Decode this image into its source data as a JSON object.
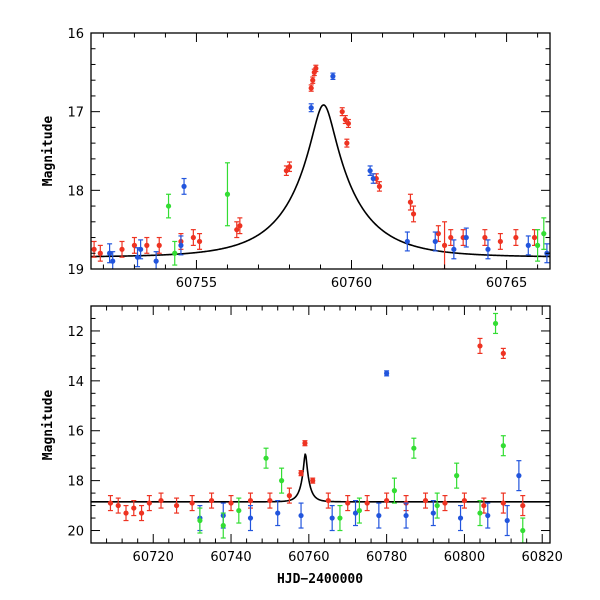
{
  "chart_data": [
    {
      "type": "scatter",
      "title": "",
      "xlabel": "",
      "ylabel": "Magnitude",
      "xlim": [
        60751.6,
        60766.4
      ],
      "ylim": [
        19.0,
        16.0
      ],
      "y_inverted": true,
      "x_major_ticks": [
        60755,
        60760,
        60765
      ],
      "y_major_ticks": [
        16,
        17,
        18,
        19
      ],
      "grid": false,
      "legend": "none",
      "model_curve": {
        "type": "single-lens microlensing fit",
        "t0": 60759.1,
        "tE": 2.0,
        "u0": 0.17,
        "baseline_mag": 18.85
      },
      "series": [
        {
          "color": "#ee3322",
          "values": [
            {
              "x": 60751.7,
              "y": 18.75,
              "e": 0.1
            },
            {
              "x": 60751.9,
              "y": 18.8,
              "e": 0.1
            },
            {
              "x": 60752.6,
              "y": 18.75,
              "e": 0.1
            },
            {
              "x": 60753.0,
              "y": 18.7,
              "e": 0.1
            },
            {
              "x": 60753.4,
              "y": 18.7,
              "e": 0.1
            },
            {
              "x": 60753.8,
              "y": 18.7,
              "e": 0.1
            },
            {
              "x": 60754.5,
              "y": 18.65,
              "e": 0.1
            },
            {
              "x": 60754.9,
              "y": 18.6,
              "e": 0.1
            },
            {
              "x": 60755.1,
              "y": 18.65,
              "e": 0.1
            },
            {
              "x": 60756.3,
              "y": 18.5,
              "e": 0.1
            },
            {
              "x": 60756.4,
              "y": 18.45,
              "e": 0.1
            },
            {
              "x": 60757.9,
              "y": 17.75,
              "e": 0.06
            },
            {
              "x": 60758.0,
              "y": 17.7,
              "e": 0.06
            },
            {
              "x": 60758.7,
              "y": 16.7,
              "e": 0.04
            },
            {
              "x": 60758.75,
              "y": 16.6,
              "e": 0.04
            },
            {
              "x": 60758.8,
              "y": 16.5,
              "e": 0.04
            },
            {
              "x": 60758.85,
              "y": 16.45,
              "e": 0.04
            },
            {
              "x": 60759.7,
              "y": 17.0,
              "e": 0.05
            },
            {
              "x": 60759.8,
              "y": 17.1,
              "e": 0.05
            },
            {
              "x": 60759.9,
              "y": 17.15,
              "e": 0.05
            },
            {
              "x": 60759.85,
              "y": 17.4,
              "e": 0.05
            },
            {
              "x": 60760.8,
              "y": 17.85,
              "e": 0.06
            },
            {
              "x": 60760.9,
              "y": 17.95,
              "e": 0.06
            },
            {
              "x": 60761.9,
              "y": 18.15,
              "e": 0.1
            },
            {
              "x": 60762.0,
              "y": 18.3,
              "e": 0.1
            },
            {
              "x": 60762.8,
              "y": 18.55,
              "e": 0.1
            },
            {
              "x": 60763.0,
              "y": 18.7,
              "e": 0.3
            },
            {
              "x": 60763.2,
              "y": 18.6,
              "e": 0.1
            },
            {
              "x": 60763.6,
              "y": 18.6,
              "e": 0.1
            },
            {
              "x": 60764.3,
              "y": 18.6,
              "e": 0.1
            },
            {
              "x": 60764.8,
              "y": 18.65,
              "e": 0.1
            },
            {
              "x": 60765.3,
              "y": 18.6,
              "e": 0.1
            },
            {
              "x": 60765.9,
              "y": 18.6,
              "e": 0.1
            }
          ]
        },
        {
          "color": "#2255dd",
          "values": [
            {
              "x": 60752.2,
              "y": 18.8,
              "e": 0.12
            },
            {
              "x": 60752.3,
              "y": 18.9,
              "e": 0.12
            },
            {
              "x": 60753.1,
              "y": 18.85,
              "e": 0.12
            },
            {
              "x": 60753.2,
              "y": 18.75,
              "e": 0.12
            },
            {
              "x": 60753.7,
              "y": 18.9,
              "e": 0.12
            },
            {
              "x": 60754.5,
              "y": 18.7,
              "e": 0.12
            },
            {
              "x": 60754.6,
              "y": 17.95,
              "e": 0.1
            },
            {
              "x": 60758.7,
              "y": 16.95,
              "e": 0.05
            },
            {
              "x": 60759.4,
              "y": 16.55,
              "e": 0.04
            },
            {
              "x": 60760.6,
              "y": 17.75,
              "e": 0.06
            },
            {
              "x": 60760.7,
              "y": 17.85,
              "e": 0.06
            },
            {
              "x": 60761.8,
              "y": 18.65,
              "e": 0.12
            },
            {
              "x": 60762.7,
              "y": 18.65,
              "e": 0.12
            },
            {
              "x": 60763.3,
              "y": 18.75,
              "e": 0.12
            },
            {
              "x": 60763.7,
              "y": 18.6,
              "e": 0.12
            },
            {
              "x": 60764.4,
              "y": 18.75,
              "e": 0.12
            },
            {
              "x": 60765.7,
              "y": 18.7,
              "e": 0.12
            },
            {
              "x": 60766.3,
              "y": 18.8,
              "e": 0.12
            }
          ]
        },
        {
          "color": "#33dd33",
          "values": [
            {
              "x": 60754.1,
              "y": 18.2,
              "e": 0.15
            },
            {
              "x": 60754.3,
              "y": 18.8,
              "e": 0.15
            },
            {
              "x": 60756.0,
              "y": 18.05,
              "e": 0.4
            },
            {
              "x": 60766.0,
              "y": 18.7,
              "e": 0.2
            },
            {
              "x": 60766.2,
              "y": 18.55,
              "e": 0.2
            }
          ]
        }
      ]
    },
    {
      "type": "scatter",
      "title": "",
      "xlabel": "HJD−2400000",
      "ylabel": "Magnitude",
      "xlim": [
        60704,
        60822
      ],
      "ylim": [
        20.5,
        11.0
      ],
      "y_inverted": true,
      "x_major_ticks": [
        60720,
        60740,
        60760,
        60780,
        60800,
        60820
      ],
      "y_major_ticks": [
        12,
        14,
        16,
        18,
        20
      ],
      "grid": false,
      "legend": "none",
      "model_curve": {
        "type": "single-lens microlensing fit",
        "t0": 60759.1,
        "tE": 2.0,
        "u0": 0.17,
        "baseline_mag": 18.85
      },
      "series": [
        {
          "color": "#ee3322",
          "values": [
            {
              "x": 60709,
              "y": 18.9,
              "e": 0.3
            },
            {
              "x": 60711,
              "y": 19.0,
              "e": 0.3
            },
            {
              "x": 60713,
              "y": 19.3,
              "e": 0.3
            },
            {
              "x": 60715,
              "y": 19.1,
              "e": 0.3
            },
            {
              "x": 60717,
              "y": 19.3,
              "e": 0.3
            },
            {
              "x": 60719,
              "y": 18.9,
              "e": 0.3
            },
            {
              "x": 60722,
              "y": 18.8,
              "e": 0.3
            },
            {
              "x": 60726,
              "y": 19.0,
              "e": 0.3
            },
            {
              "x": 60730,
              "y": 18.9,
              "e": 0.3
            },
            {
              "x": 60735,
              "y": 18.8,
              "e": 0.3
            },
            {
              "x": 60740,
              "y": 18.9,
              "e": 0.3
            },
            {
              "x": 60745,
              "y": 18.8,
              "e": 0.3
            },
            {
              "x": 60750,
              "y": 18.8,
              "e": 0.3
            },
            {
              "x": 60755,
              "y": 18.6,
              "e": 0.3
            },
            {
              "x": 60758,
              "y": 17.7,
              "e": 0.1
            },
            {
              "x": 60759,
              "y": 16.5,
              "e": 0.1
            },
            {
              "x": 60761,
              "y": 18.0,
              "e": 0.1
            },
            {
              "x": 60765,
              "y": 18.8,
              "e": 0.3
            },
            {
              "x": 60770,
              "y": 18.9,
              "e": 0.3
            },
            {
              "x": 60775,
              "y": 18.9,
              "e": 0.3
            },
            {
              "x": 60780,
              "y": 18.8,
              "e": 0.3
            },
            {
              "x": 60785,
              "y": 18.9,
              "e": 0.3
            },
            {
              "x": 60790,
              "y": 18.8,
              "e": 0.3
            },
            {
              "x": 60795,
              "y": 18.9,
              "e": 0.3
            },
            {
              "x": 60800,
              "y": 18.8,
              "e": 0.3
            },
            {
              "x": 60805,
              "y": 19.0,
              "e": 0.3
            },
            {
              "x": 60810,
              "y": 18.9,
              "e": 0.4
            },
            {
              "x": 60815,
              "y": 19.0,
              "e": 0.4
            },
            {
              "x": 60804,
              "y": 12.6,
              "e": 0.3
            },
            {
              "x": 60810,
              "y": 12.9,
              "e": 0.2
            }
          ]
        },
        {
          "color": "#2255dd",
          "values": [
            {
              "x": 60732,
              "y": 19.5,
              "e": 0.5
            },
            {
              "x": 60738,
              "y": 19.4,
              "e": 0.5
            },
            {
              "x": 60745,
              "y": 19.5,
              "e": 0.5
            },
            {
              "x": 60752,
              "y": 19.3,
              "e": 0.5
            },
            {
              "x": 60758,
              "y": 19.4,
              "e": 0.5
            },
            {
              "x": 60766,
              "y": 19.5,
              "e": 0.5
            },
            {
              "x": 60772,
              "y": 19.3,
              "e": 0.5
            },
            {
              "x": 60778,
              "y": 19.4,
              "e": 0.5
            },
            {
              "x": 60785,
              "y": 19.4,
              "e": 0.5
            },
            {
              "x": 60792,
              "y": 19.3,
              "e": 0.5
            },
            {
              "x": 60799,
              "y": 19.5,
              "e": 0.5
            },
            {
              "x": 60806,
              "y": 19.4,
              "e": 0.5
            },
            {
              "x": 60811,
              "y": 19.6,
              "e": 0.6
            },
            {
              "x": 60814,
              "y": 17.8,
              "e": 0.6
            },
            {
              "x": 60780,
              "y": 13.7,
              "e": 0.1
            }
          ]
        },
        {
          "color": "#33dd33",
          "values": [
            {
              "x": 60732,
              "y": 19.6,
              "e": 0.5
            },
            {
              "x": 60738,
              "y": 19.8,
              "e": 0.5
            },
            {
              "x": 60742,
              "y": 19.2,
              "e": 0.5
            },
            {
              "x": 60749,
              "y": 17.1,
              "e": 0.4
            },
            {
              "x": 60753,
              "y": 18.0,
              "e": 0.5
            },
            {
              "x": 60768,
              "y": 19.5,
              "e": 0.5
            },
            {
              "x": 60773,
              "y": 19.2,
              "e": 0.5
            },
            {
              "x": 60782,
              "y": 18.4,
              "e": 0.5
            },
            {
              "x": 60787,
              "y": 16.7,
              "e": 0.4
            },
            {
              "x": 60793,
              "y": 19.0,
              "e": 0.5
            },
            {
              "x": 60798,
              "y": 17.8,
              "e": 0.5
            },
            {
              "x": 60804,
              "y": 19.3,
              "e": 0.5
            },
            {
              "x": 60808,
              "y": 11.7,
              "e": 0.4
            },
            {
              "x": 60810,
              "y": 16.6,
              "e": 0.4
            },
            {
              "x": 60815,
              "y": 20.0,
              "e": 0.5
            }
          ]
        }
      ]
    }
  ]
}
